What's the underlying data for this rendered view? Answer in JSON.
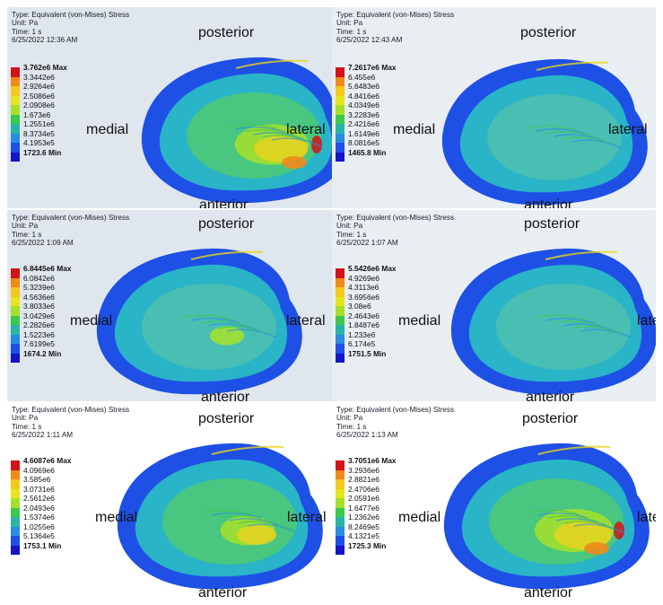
{
  "panels": [
    {
      "info": {
        "type": "Type: Equivalent (von-Mises) Stress",
        "unit": "Unit: Pa",
        "time": "Time: 1 s",
        "date": "6/25/2022 12:36 AM"
      },
      "legend": {
        "max": "3.762e6 Max",
        "values": [
          "3.3442e6",
          "2.9264e6",
          "2.5086e6",
          "2.0908e6",
          "1.673e6",
          "1.2551e6",
          "8.3734e5",
          "4.1953e5"
        ],
        "min": "1723.6 Min"
      },
      "labels": {
        "posterior": "posterior",
        "anterior": "anterior",
        "medial": "medial",
        "lateral": "lateral"
      }
    },
    {
      "info": {
        "type": "Type: Equivalent (von-Mises) Stress",
        "unit": "Unit: Pa",
        "time": "Time: 1 s",
        "date": "6/25/2022 12:43 AM"
      },
      "legend": {
        "max": "7.2617e6 Max",
        "values": [
          "6.455e6",
          "5.6483e6",
          "4.8416e6",
          "4.0349e6",
          "3.2283e6",
          "2.4216e6",
          "1.6149e6",
          "8.0816e5"
        ],
        "min": "1465.8 Min"
      },
      "labels": {
        "posterior": "posterior",
        "anterior": "anterior",
        "medial": "medial",
        "lateral": "lateral"
      }
    },
    {
      "info": {
        "type": "Type: Equivalent (von-Mises) Stress",
        "unit": "Unit: Pa",
        "time": "Time: 1 s",
        "date": "6/25/2022 1:09 AM"
      },
      "legend": {
        "max": "6.8445e6 Max",
        "values": [
          "6.0842e6",
          "5.3239e6",
          "4.5636e6",
          "3.8033e6",
          "3.0429e6",
          "2.2826e6",
          "1.5223e6",
          "7.6199e5"
        ],
        "min": "1674.2 Min"
      },
      "labels": {
        "posterior": "posterior",
        "anterior": "anterior",
        "medial": "medial",
        "lateral": "lateral"
      }
    },
    {
      "info": {
        "type": "Type: Equivalent (von-Mises) Stress",
        "unit": "Unit: Pa",
        "time": "Time: 1 s",
        "date": "6/25/2022 1:07 AM"
      },
      "legend": {
        "max": "5.5426e6 Max",
        "values": [
          "4.9269e6",
          "4.3113e6",
          "3.6956e6",
          "3.08e6",
          "2.4643e6",
          "1.8487e6",
          "1.233e6",
          "6.174e5"
        ],
        "min": "1751.5 Min"
      },
      "labels": {
        "posterior": "posterior",
        "anterior": "anterior",
        "medial": "medial",
        "lateral": "lateral"
      }
    },
    {
      "info": {
        "type": "Type: Equivalent (von-Mises) Stress",
        "unit": "Unit: Pa",
        "time": "Time: 1 s",
        "date": "6/25/2022 1:11 AM"
      },
      "legend": {
        "max": "4.6087e6 Max",
        "values": [
          "4.0969e6",
          "3.585e6",
          "3.0731e6",
          "2.5612e6",
          "2.0493e6",
          "1.5374e6",
          "1.0255e6",
          "5.1364e5"
        ],
        "min": "1753.1 Min"
      },
      "labels": {
        "posterior": "posterior",
        "anterior": "anterior",
        "medial": "medial",
        "lateral": "lateral"
      }
    },
    {
      "info": {
        "type": "Type: Equivalent (von-Mises) Stress",
        "unit": "Unit: Pa",
        "time": "Time: 1 s",
        "date": "6/25/2022 1:13 AM"
      },
      "legend": {
        "max": "3.7051e6 Max",
        "values": [
          "3.2936e6",
          "2.8821e6",
          "2.4706e6",
          "2.0591e6",
          "1.6477e6",
          "1.2362e6",
          "8.2469e5",
          "4.1321e5"
        ],
        "min": "1725.3 Min"
      },
      "labels": {
        "posterior": "posterior",
        "anterior": "anterior",
        "medial": "medial",
        "lateral": "lateral"
      }
    }
  ],
  "colormap": [
    "#d0141a",
    "#f08a1a",
    "#f5c81e",
    "#e6e61e",
    "#a6e02a",
    "#3cc84a",
    "#2ab4a8",
    "#2a8ce0",
    "#1e50e6",
    "#1414c8"
  ]
}
